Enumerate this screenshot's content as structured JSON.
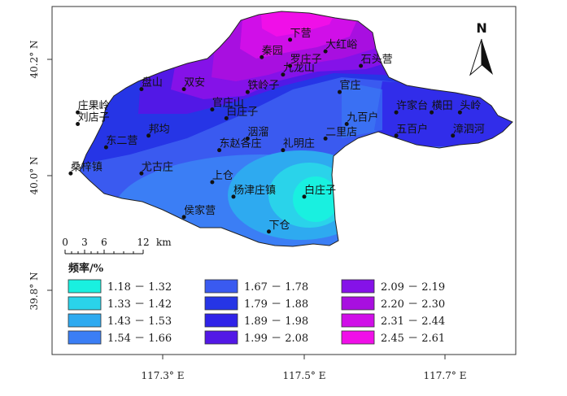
{
  "map": {
    "lat_ticks": [
      "40.2° N",
      "40.0° N",
      "39.8° N"
    ],
    "lon_ticks": [
      "117.3° E",
      "117.5° E",
      "117.7° E"
    ],
    "north_arrow_label": "N",
    "scale_bar": {
      "ticks": [
        "0",
        "3",
        "6",
        "12"
      ],
      "unit": "km"
    },
    "places": [
      {
        "name": "下营",
        "lon": 117.48,
        "lat": 40.245
      },
      {
        "name": "大红峪",
        "lon": 117.53,
        "lat": 40.225
      },
      {
        "name": "秦园",
        "lon": 117.44,
        "lat": 40.215
      },
      {
        "name": "罗庄子",
        "lon": 117.48,
        "lat": 40.2
      },
      {
        "name": "石头营",
        "lon": 117.58,
        "lat": 40.2
      },
      {
        "name": "九龙山",
        "lon": 117.47,
        "lat": 40.185
      },
      {
        "name": "盘山",
        "lon": 117.27,
        "lat": 40.16
      },
      {
        "name": "双安",
        "lon": 117.33,
        "lat": 40.16
      },
      {
        "name": "铁岭子",
        "lon": 117.42,
        "lat": 40.155
      },
      {
        "name": "官庄",
        "lon": 117.55,
        "lat": 40.155
      },
      {
        "name": "许家台",
        "lon": 117.63,
        "lat": 40.12
      },
      {
        "name": "横田",
        "lon": 117.68,
        "lat": 40.12
      },
      {
        "name": "头岭",
        "lon": 117.72,
        "lat": 40.12
      },
      {
        "name": "官庄山",
        "lon": 117.37,
        "lat": 40.125
      },
      {
        "name": "白庄子",
        "lon": 117.39,
        "lat": 40.11
      },
      {
        "name": "庄果岭",
        "lon": 117.18,
        "lat": 40.12
      },
      {
        "name": "刘店子",
        "lon": 117.18,
        "lat": 40.1
      },
      {
        "name": "九百户",
        "lon": 117.56,
        "lat": 40.1
      },
      {
        "name": "五百户",
        "lon": 117.63,
        "lat": 40.08
      },
      {
        "name": "漳泗河",
        "lon": 117.71,
        "lat": 40.08
      },
      {
        "name": "东二营",
        "lon": 117.22,
        "lat": 40.06
      },
      {
        "name": "邦均",
        "lon": 117.28,
        "lat": 40.08
      },
      {
        "name": "洇溜",
        "lon": 117.42,
        "lat": 40.075
      },
      {
        "name": "二里店",
        "lon": 117.53,
        "lat": 40.075
      },
      {
        "name": "东赵各庄",
        "lon": 117.38,
        "lat": 40.055
      },
      {
        "name": "礼明庄",
        "lon": 117.47,
        "lat": 40.055
      },
      {
        "name": "桑梓镇",
        "lon": 117.17,
        "lat": 40.015
      },
      {
        "name": "尤古庄",
        "lon": 117.27,
        "lat": 40.015
      },
      {
        "name": "上仓",
        "lon": 117.37,
        "lat": 40.0
      },
      {
        "name": "杨津庄镇",
        "lon": 117.4,
        "lat": 39.975
      },
      {
        "name": "白庄子",
        "lon": 117.5,
        "lat": 39.975
      },
      {
        "name": "侯家营",
        "lon": 117.33,
        "lat": 39.94
      },
      {
        "name": "下仓",
        "lon": 117.45,
        "lat": 39.915
      }
    ]
  },
  "legend": {
    "title": "频率/%",
    "items": [
      {
        "range": "1.18 － 1.32",
        "color": "#19f0e0"
      },
      {
        "range": "1.33 － 1.42",
        "color": "#2ad3ea"
      },
      {
        "range": "1.43 － 1.53",
        "color": "#2eaaf0"
      },
      {
        "range": "1.54 － 1.66",
        "color": "#3b7ef5"
      },
      {
        "range": "1.67 － 1.78",
        "color": "#3a5af0"
      },
      {
        "range": "1.79 － 1.88",
        "color": "#2635e6"
      },
      {
        "range": "1.89 － 1.98",
        "color": "#2f22e8"
      },
      {
        "range": "1.99 － 2.08",
        "color": "#5218e6"
      },
      {
        "range": "2.09 － 2.19",
        "color": "#8512e8"
      },
      {
        "range": "2.20 － 2.30",
        "color": "#a80fe0"
      },
      {
        "range": "2.31 － 2.44",
        "color": "#d00fe8"
      },
      {
        "range": "2.45 － 2.61",
        "color": "#f00fe8"
      }
    ]
  }
}
